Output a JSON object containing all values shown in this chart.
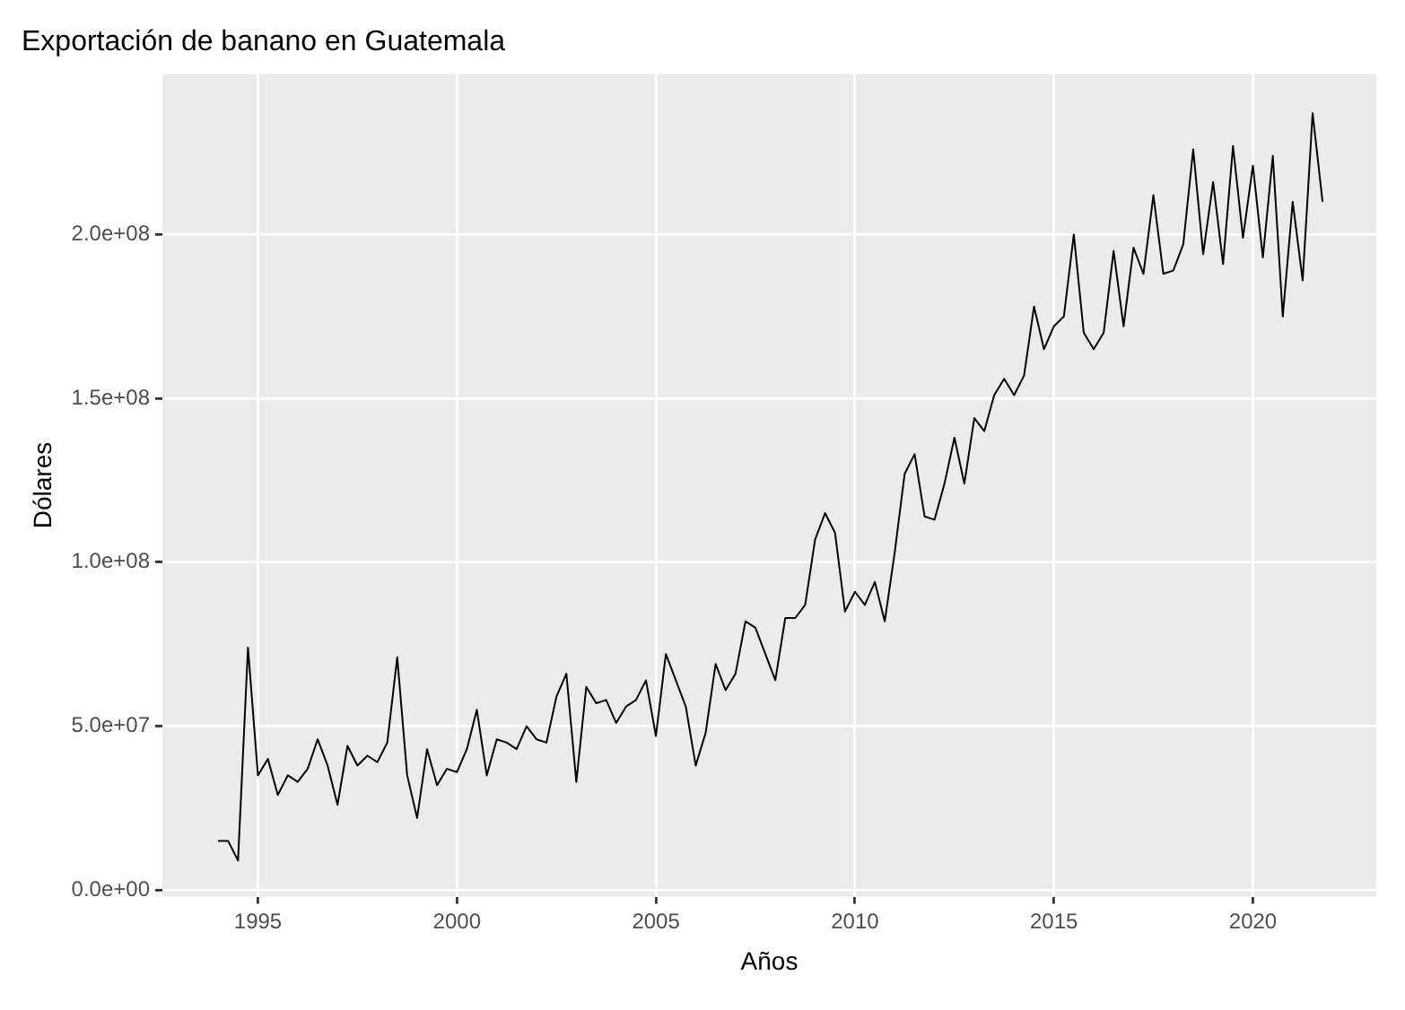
{
  "chart_data": {
    "type": "line",
    "title": "Exportación de banano en Guatemala",
    "xlabel": "Años",
    "ylabel": "Dólares",
    "x": [
      1994,
      1994.25,
      1994.5,
      1994.75,
      1995,
      1995.25,
      1995.5,
      1995.75,
      1996,
      1996.25,
      1996.5,
      1996.75,
      1997,
      1997.25,
      1997.5,
      1997.75,
      1998,
      1998.25,
      1998.5,
      1998.75,
      1999,
      1999.25,
      1999.5,
      1999.75,
      2000,
      2000.25,
      2000.5,
      2000.75,
      2001,
      2001.25,
      2001.5,
      2001.75,
      2002,
      2002.25,
      2002.5,
      2002.75,
      2003,
      2003.25,
      2003.5,
      2003.75,
      2004,
      2004.25,
      2004.5,
      2004.75,
      2005,
      2005.25,
      2005.5,
      2005.75,
      2006,
      2006.25,
      2006.5,
      2006.75,
      2007,
      2007.25,
      2007.5,
      2007.75,
      2008,
      2008.25,
      2008.5,
      2008.75,
      2009,
      2009.25,
      2009.5,
      2009.75,
      2010,
      2010.25,
      2010.5,
      2010.75,
      2011,
      2011.25,
      2011.5,
      2011.75,
      2012,
      2012.25,
      2012.5,
      2012.75,
      2013,
      2013.25,
      2013.5,
      2013.75,
      2014,
      2014.25,
      2014.5,
      2014.75,
      2015,
      2015.25,
      2015.5,
      2015.75,
      2016,
      2016.25,
      2016.5,
      2016.75,
      2017,
      2017.25,
      2017.5,
      2017.75,
      2018,
      2018.25,
      2018.5,
      2018.75,
      2019,
      2019.25,
      2019.5,
      2019.75,
      2020,
      2020.25,
      2020.5,
      2020.75,
      2021,
      2021.25,
      2021.5,
      2021.75
    ],
    "series": [
      {
        "color": "#000000",
        "values": [
          15000000,
          15000000,
          9000000,
          74000000,
          35000000,
          40000000,
          29000000,
          35000000,
          33000000,
          37000000,
          46000000,
          38000000,
          26000000,
          44000000,
          38000000,
          41000000,
          39000000,
          45000000,
          71000000,
          35000000,
          22000000,
          43000000,
          32000000,
          37000000,
          36000000,
          43000000,
          55000000,
          35000000,
          46000000,
          45000000,
          43000000,
          50000000,
          46000000,
          45000000,
          59000000,
          66000000,
          33000000,
          62000000,
          57000000,
          58000000,
          51000000,
          56000000,
          58000000,
          64000000,
          47000000,
          72000000,
          64000000,
          56000000,
          38000000,
          48000000,
          69000000,
          61000000,
          66000000,
          82000000,
          80000000,
          72000000,
          64000000,
          83000000,
          83000000,
          87000000,
          107000000,
          115000000,
          109000000,
          85000000,
          91000000,
          87000000,
          94000000,
          82000000,
          103000000,
          127000000,
          133000000,
          114000000,
          113000000,
          124000000,
          138000000,
          124000000,
          144000000,
          140000000,
          151000000,
          156000000,
          151000000,
          157000000,
          178000000,
          165000000,
          172000000,
          175000000,
          200000000,
          170000000,
          165000000,
          170000000,
          195000000,
          172000000,
          196000000,
          188000000,
          212000000,
          188000000,
          189000000,
          197000000,
          226000000,
          194000000,
          216000000,
          191000000,
          227000000,
          199000000,
          221000000,
          193000000,
          224000000,
          175000000,
          210000000,
          186000000,
          237000000,
          210000000
        ]
      }
    ],
    "xlim": [
      1992.6,
      2023.1
    ],
    "xticks": [
      1995,
      2000,
      2005,
      2010,
      2015,
      2020
    ],
    "ylim": [
      -2000000,
      249000000
    ],
    "yticks": [
      {
        "value": 0,
        "label": "0.0e+00"
      },
      {
        "value": 50000000,
        "label": "5.0e+07"
      },
      {
        "value": 100000000,
        "label": "1.0e+08"
      },
      {
        "value": 150000000,
        "label": "1.5e+08"
      },
      {
        "value": 200000000,
        "label": "2.0e+08"
      }
    ],
    "grid": true,
    "marker": "none",
    "line_style": "solid"
  }
}
